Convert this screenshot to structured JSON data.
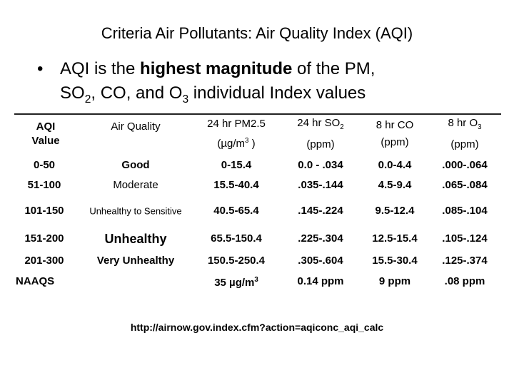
{
  "title": "Criteria Air Pollutants: Air Quality Index (AQI)",
  "bullet": {
    "p1": "AQI is the ",
    "bold": "highest magnitude",
    "p2": " of the PM,",
    "p3": "SO",
    "sub1": "2",
    "p4": ", CO, and O",
    "sub2": "3",
    "p5": " individual Index values"
  },
  "table": {
    "header": [
      {
        "text": "AQI Value"
      },
      {
        "text": "Air Quality"
      },
      {
        "text": "24 hr PM2.5",
        "unit": "(µg/m",
        "sup": "3",
        "unit_end": " )"
      },
      {
        "text": "24 hr SO",
        "sub": "2",
        "unit": "(ppm)"
      },
      {
        "text": "8 hr CO",
        "unit": "(ppm)"
      },
      {
        "text": "8 hr O",
        "sub": "3",
        "unit": "(ppm)"
      }
    ],
    "rows": [
      [
        "0-50",
        "Good",
        "0-15.4",
        "0.0 - .034",
        "0.0-4.4",
        ".000-.064"
      ],
      [
        "51-100",
        "Moderate",
        "15.5-40.4",
        ".035-.144",
        "4.5-9.4",
        ".065-.084"
      ],
      [
        "101-150",
        "Unhealthy to Sensitive",
        "40.5-65.4",
        ".145-.224",
        "9.5-12.4",
        ".085-.104"
      ],
      [
        "151-200",
        "Unhealthy",
        "65.5-150.4",
        ".225-.304",
        "12.5-15.4",
        ".105-.124"
      ],
      [
        "201-300",
        "Very Unhealthy",
        "150.5-250.4",
        ".305-.604",
        "15.5-30.4",
        ".125-.374"
      ],
      [
        "NAAQS",
        null,
        {
          "text": "35 µg/m",
          "sup": "3"
        },
        "0.14 ppm",
        "9 ppm",
        ".08 ppm"
      ]
    ]
  },
  "footer": "http://airnow.gov.index.cfm?action=aqiconc_aqi_calc"
}
